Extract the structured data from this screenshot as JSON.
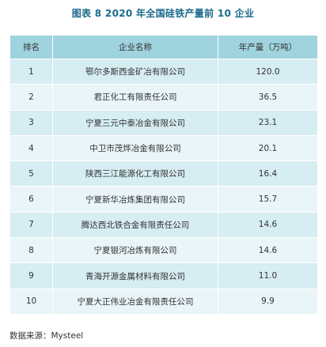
{
  "title": "图表 8   2020 年全国硅铁产量前 10 企业",
  "table": {
    "headers": [
      "排名",
      "企业名称",
      "年产量（万吨）"
    ],
    "rows": [
      [
        "1",
        "鄂尔多斯西金矿冶有限公司",
        "120.0"
      ],
      [
        "2",
        "君正化工有限责任公司",
        "36.5"
      ],
      [
        "3",
        "宁夏三元中泰冶金有限公司",
        "23.1"
      ],
      [
        "4",
        "中卫市茂烨冶金有限公司",
        "20.1"
      ],
      [
        "5",
        "陕西三江能源化工有限公司",
        "16.4"
      ],
      [
        "6",
        "宁夏新华冶炼集团有限公司",
        "15.7"
      ],
      [
        "7",
        "腾达西北铁合金有限责任公司",
        "14.6"
      ],
      [
        "8",
        "宁夏银河冶炼有限公司",
        "14.6"
      ],
      [
        "9",
        "青海开源金属材料有限公司",
        "11.0"
      ],
      [
        "10",
        "宁夏大正伟业冶金有限责任公司",
        "9.9"
      ]
    ]
  },
  "source": "数据来源：Mysteel",
  "colors": {
    "title": "#1a6a8a",
    "header_bg": "#9fd3de",
    "row_odd_bg": "#d6edf2",
    "row_even_bg": "#e9f5f8"
  }
}
